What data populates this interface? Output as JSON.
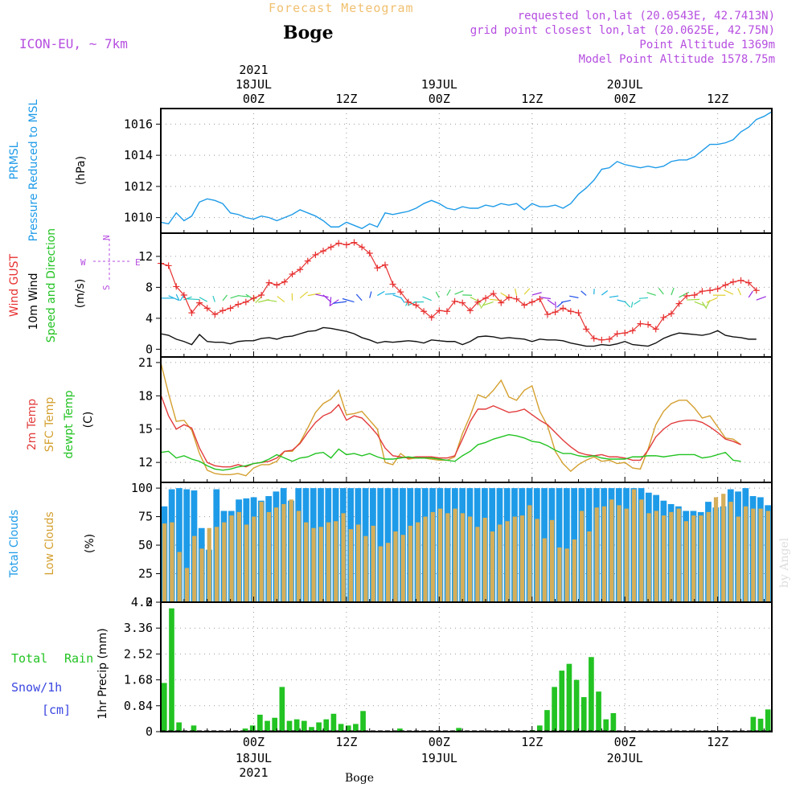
{
  "header": {
    "suptitle": "Forecast Meteogram",
    "station": "Boge",
    "model": "ICON-EU, ~ 7km",
    "requested": "requested lon,lat (20.0543E, 42.7413N)",
    "grid_point": "grid point closest lon,lat (20.0625E, 42.75N)",
    "point_altitude": "Point Altitude 1369m",
    "model_altitude": "Model Point Altitude 1578.75m",
    "watermark": "by Angel",
    "footer": "Boge"
  },
  "colors": {
    "pressure": "#1e9be8",
    "gust": "#e83030",
    "wind": "#111111",
    "temp": "#e23c3c",
    "sfc": "#d4a030",
    "dew": "#22c322",
    "cloud_total": "#1e9be8",
    "cloud_low": "#d4ae5a",
    "rain": "#22c322",
    "snow": "#3a46e0",
    "header_purple": "#b64ee0",
    "title_orange": "#f0c070"
  },
  "time_axis": {
    "top_year": "2021",
    "bottom_year": "2021",
    "labels": [
      {
        "t": 12,
        "hour": "00Z",
        "date": "18JUL"
      },
      {
        "t": 24,
        "hour": "12Z",
        "date": ""
      },
      {
        "t": 36,
        "hour": "00Z",
        "date": "19JUL"
      },
      {
        "t": 48,
        "hour": "12Z",
        "date": ""
      },
      {
        "t": 60,
        "hour": "00Z",
        "date": "20JUL"
      },
      {
        "t": 72,
        "hour": "12Z",
        "date": ""
      }
    ]
  },
  "chart_data": [
    {
      "type": "line",
      "label1": "PRMSL",
      "label2": "Pressure Reduced to MSL",
      "ylabel": "(hPa)",
      "ylim": [
        1009,
        1017
      ],
      "yticks": [
        1010,
        1012,
        1014,
        1016
      ],
      "series": [
        {
          "values": [
            1009.7,
            1009.6,
            1010.3,
            1009.8,
            1010.1,
            1011.0,
            1011.2,
            1011.1,
            1010.9,
            1010.3,
            1010.2,
            1010.0,
            1009.9,
            1010.1,
            1010.0,
            1009.8,
            1010.0,
            1010.2,
            1010.5,
            1010.3,
            1010.1,
            1009.8,
            1009.4,
            1009.4,
            1009.7,
            1009.5,
            1009.3,
            1009.6,
            1009.4,
            1010.3,
            1010.2,
            1010.3,
            1010.4,
            1010.6,
            1010.9,
            1011.1,
            1010.9,
            1010.6,
            1010.5,
            1010.7,
            1010.6,
            1010.6,
            1010.8,
            1010.7,
            1010.9,
            1010.8,
            1010.9,
            1010.5,
            1010.9,
            1010.7,
            1010.7,
            1010.8,
            1010.6,
            1010.9,
            1011.5,
            1011.9,
            1012.4,
            1013.1,
            1013.2,
            1013.6,
            1013.4,
            1013.3,
            1013.2,
            1013.3,
            1013.2,
            1013.3,
            1013.6,
            1013.7,
            1013.7,
            1013.9,
            1014.3,
            1014.7,
            1014.7,
            1014.8,
            1015.0,
            1015.5,
            1015.8,
            1016.3,
            1016.5,
            1016.8
          ]
        }
      ]
    },
    {
      "type": "line",
      "label1": "Wind GUST",
      "label2": "10m Wind",
      "label3": "Speed and Direction",
      "ylabel": "(m/s)",
      "compass": {
        "n": "N",
        "s": "S",
        "w": "W",
        "e": "E"
      },
      "ylim": [
        -1,
        15
      ],
      "yticks": [
        0,
        4,
        8,
        12
      ],
      "series": [
        {
          "name": "Wind GUST",
          "values": [
            11.1,
            10.8,
            8.1,
            7.0,
            4.7,
            6.0,
            5.3,
            4.5,
            5.0,
            5.3,
            5.8,
            6.1,
            6.6,
            7.0,
            8.6,
            8.3,
            8.7,
            9.7,
            10.3,
            11.4,
            12.2,
            12.7,
            13.2,
            13.7,
            13.5,
            13.8,
            13.2,
            12.4,
            10.5,
            10.9,
            8.4,
            7.4,
            6.1,
            5.7,
            4.9,
            4.1,
            5.0,
            4.9,
            6.2,
            6.0,
            5.0,
            6.1,
            6.6,
            7.2,
            6.0,
            6.7,
            6.5,
            5.7,
            6.1,
            6.5,
            4.5,
            4.8,
            5.3,
            4.9,
            4.7,
            2.6,
            1.4,
            1.2,
            1.3,
            2.0,
            2.1,
            2.4,
            3.3,
            3.2,
            2.6,
            4.1,
            4.6,
            5.9,
            6.9,
            7.0,
            7.5,
            7.6,
            7.8,
            8.3,
            8.7,
            8.9,
            8.6,
            7.6
          ]
        },
        {
          "name": "10m Wind",
          "values": [
            2.0,
            1.8,
            1.3,
            1.0,
            0.6,
            1.9,
            1.0,
            0.9,
            0.9,
            0.7,
            1.0,
            1.1,
            1.1,
            1.4,
            1.5,
            1.3,
            1.6,
            1.7,
            2.0,
            2.3,
            2.4,
            2.8,
            2.7,
            2.5,
            2.3,
            2.0,
            1.5,
            1.2,
            0.8,
            1.0,
            0.9,
            1.0,
            1.1,
            1.0,
            0.8,
            1.2,
            1.1,
            1.0,
            1.0,
            0.6,
            1.0,
            1.6,
            1.7,
            1.6,
            1.4,
            1.5,
            1.4,
            1.3,
            1.0,
            1.3,
            1.2,
            1.2,
            1.1,
            0.8,
            0.6,
            0.4,
            0.4,
            0.6,
            0.5,
            0.7,
            1.0,
            0.6,
            0.5,
            0.4,
            0.8,
            1.4,
            1.8,
            2.1,
            2.0,
            1.9,
            1.8,
            2.0,
            2.4,
            1.8,
            1.6,
            1.5,
            1.3,
            1.3
          ]
        }
      ]
    },
    {
      "type": "line",
      "label1": "2m Temp",
      "label2": "SFC Temp",
      "label3": "dewpt Temp",
      "ylabel": "(C)",
      "ylim": [
        10.2,
        21.5
      ],
      "yticks": [
        12,
        15,
        18,
        21
      ],
      "series": [
        {
          "name": "2m Temp",
          "values": [
            18.1,
            16.2,
            15.0,
            15.4,
            15.1,
            13.3,
            12.0,
            11.7,
            11.6,
            11.6,
            11.8,
            11.6,
            11.9,
            12.0,
            12.1,
            12.4,
            13.0,
            13.1,
            13.7,
            14.7,
            15.6,
            16.2,
            16.5,
            17.2,
            15.8,
            16.2,
            16.0,
            15.3,
            14.5,
            13.3,
            12.6,
            12.5,
            12.4,
            12.5,
            12.5,
            12.5,
            12.4,
            12.4,
            12.6,
            14.1,
            15.7,
            16.8,
            16.8,
            17.1,
            16.8,
            16.5,
            16.6,
            16.8,
            16.3,
            15.8,
            15.4,
            14.7,
            14.0,
            13.4,
            12.9,
            12.7,
            12.6,
            12.7,
            12.5,
            12.5,
            12.4,
            12.2,
            12.2,
            13.1,
            14.3,
            15.0,
            15.5,
            15.7,
            15.8,
            15.8,
            15.6,
            15.2,
            14.7,
            14.1,
            13.9,
            13.6
          ]
        },
        {
          "name": "SFC Temp",
          "values": [
            21.0,
            18.2,
            15.7,
            15.8,
            14.9,
            12.8,
            11.3,
            11.0,
            10.9,
            10.9,
            11.0,
            10.8,
            11.5,
            11.8,
            11.8,
            12.1,
            13.0,
            13.0,
            13.8,
            15.1,
            16.5,
            17.3,
            17.7,
            18.5,
            16.3,
            16.4,
            16.6,
            15.8,
            15.0,
            12.0,
            11.8,
            12.8,
            12.3,
            12.4,
            12.4,
            12.3,
            12.2,
            12.2,
            12.5,
            14.6,
            16.2,
            18.1,
            17.8,
            18.5,
            19.4,
            17.9,
            17.6,
            18.5,
            18.9,
            16.6,
            15.3,
            13.0,
            11.9,
            11.2,
            11.8,
            12.2,
            12.5,
            12.1,
            12.2,
            11.9,
            12.0,
            11.5,
            11.4,
            13.2,
            15.4,
            16.6,
            17.3,
            17.6,
            17.6,
            16.9,
            16.0,
            16.2,
            15.2,
            14.2,
            14.1,
            13.6
          ]
        },
        {
          "name": "dewpt Temp",
          "values": [
            12.9,
            13.0,
            12.4,
            12.6,
            12.3,
            12.1,
            11.7,
            11.4,
            11.3,
            11.4,
            11.6,
            11.7,
            11.9,
            12.0,
            12.3,
            12.7,
            12.4,
            12.1,
            12.4,
            12.5,
            12.8,
            12.9,
            12.4,
            13.2,
            12.7,
            12.8,
            12.6,
            12.8,
            12.5,
            12.3,
            12.3,
            12.4,
            12.5,
            12.4,
            12.4,
            12.4,
            12.3,
            12.2,
            12.1,
            12.6,
            13.0,
            13.6,
            13.8,
            14.1,
            14.3,
            14.5,
            14.4,
            14.2,
            13.9,
            13.8,
            13.5,
            13.1,
            12.8,
            12.8,
            12.6,
            12.5,
            12.6,
            12.4,
            12.3,
            12.3,
            12.3,
            12.5,
            12.5,
            12.6,
            12.6,
            12.5,
            12.6,
            12.7,
            12.7,
            12.7,
            12.4,
            12.5,
            12.7,
            12.9,
            12.2,
            12.1
          ]
        }
      ]
    },
    {
      "type": "bar",
      "label1": "Total Clouds",
      "label2": "Low Clouds",
      "ylabel": "(%)",
      "ylim": [
        0,
        105
      ],
      "yticks": [
        0,
        25,
        50,
        75,
        100
      ],
      "series": [
        {
          "name": "Total Clouds",
          "values": [
            84,
            99,
            100,
            99,
            98,
            65,
            46,
            99,
            80,
            80,
            90,
            91,
            92,
            89,
            93,
            97,
            100,
            89,
            100,
            100,
            100,
            100,
            100,
            100,
            100,
            100,
            100,
            100,
            100,
            100,
            100,
            100,
            100,
            100,
            100,
            100,
            100,
            100,
            100,
            100,
            100,
            100,
            100,
            100,
            100,
            100,
            100,
            100,
            100,
            100,
            100,
            100,
            100,
            100,
            100,
            100,
            100,
            100,
            100,
            100,
            100,
            100,
            100,
            100,
            100,
            96,
            94,
            89,
            86,
            84,
            80,
            80,
            79,
            88,
            83,
            84,
            99,
            97,
            100,
            93,
            92,
            85
          ]
        },
        {
          "name": "Low Clouds",
          "values": [
            69,
            70,
            44,
            30,
            58,
            47,
            65,
            66,
            70,
            76,
            79,
            68,
            75,
            88,
            79,
            83,
            86,
            90,
            80,
            70,
            65,
            66,
            70,
            71,
            78,
            64,
            68,
            58,
            67,
            49,
            52,
            62,
            59,
            67,
            70,
            75,
            79,
            82,
            78,
            82,
            78,
            75,
            66,
            74,
            62,
            68,
            71,
            75,
            76,
            85,
            73,
            56,
            72,
            48,
            47,
            55,
            80,
            62,
            83,
            84,
            90,
            85,
            82,
            99,
            90,
            78,
            80,
            76,
            79,
            82,
            71,
            76,
            76,
            79,
            92,
            95,
            88,
            75,
            84,
            82,
            82,
            80
          ]
        }
      ]
    },
    {
      "type": "bar",
      "label1": "Total",
      "label2": "Rain",
      "label3": "Snow/1h",
      "label4": "[cm]",
      "ylabel": "1hr Precip (mm)",
      "ylim": [
        0,
        4.2
      ],
      "yticks": [
        0,
        0.84,
        1.68,
        2.52,
        3.36,
        4.2
      ],
      "ytick_labels": [
        "0",
        "0.84",
        "1.68",
        "2.52",
        "3.36",
        "4.2"
      ],
      "series": [
        {
          "name": "Total Rain",
          "values": [
            1.58,
            4.0,
            0.3,
            0,
            0.2,
            0,
            0,
            0,
            0,
            0,
            0,
            0.1,
            0.2,
            0.55,
            0.35,
            0.45,
            1.45,
            0.35,
            0.4,
            0.35,
            0.15,
            0.3,
            0.4,
            0.58,
            0.25,
            0.2,
            0.25,
            0.67,
            0,
            0,
            0,
            0,
            0.1,
            0,
            0,
            0,
            0,
            0,
            0,
            0,
            0.12,
            0,
            0,
            0,
            0,
            0,
            0,
            0,
            0,
            0,
            0.05,
            0.2,
            0.7,
            1.45,
            1.98,
            2.2,
            1.68,
            1.12,
            2.42,
            1.3,
            0.4,
            0.6,
            0,
            0,
            0,
            0,
            0,
            0,
            0,
            0,
            0,
            0,
            0,
            0,
            0,
            0,
            0,
            0,
            0,
            0,
            0.48,
            0.42,
            0.72
          ]
        }
      ]
    }
  ]
}
